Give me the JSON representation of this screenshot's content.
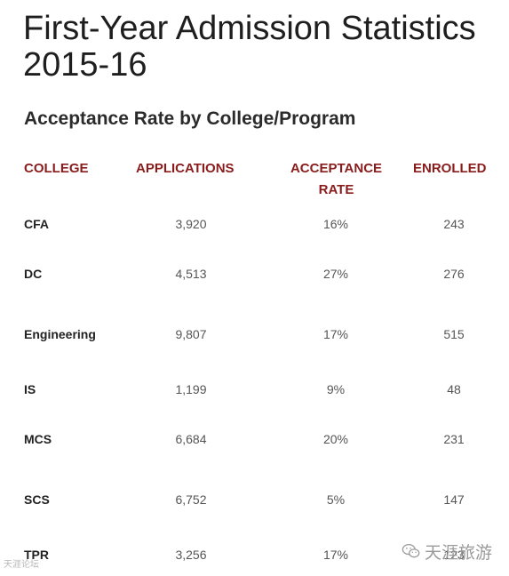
{
  "title": "First-Year Admission Statistics 2015-16",
  "subtitle": "Acceptance Rate by College/Program",
  "table": {
    "headers": {
      "college": "COLLEGE",
      "applications": "APPLICATIONS",
      "acceptance_rate": "ACCEPTANCE RATE",
      "enrolled": "ENROLLED"
    },
    "rows": [
      {
        "college": "CFA",
        "applications": "3,920",
        "acceptance_rate": "16%",
        "enrolled": "243"
      },
      {
        "college": "DC",
        "applications": "4,513",
        "acceptance_rate": "27%",
        "enrolled": "276"
      },
      {
        "college": "Engineering",
        "applications": "9,807",
        "acceptance_rate": "17%",
        "enrolled": "515"
      },
      {
        "college": "IS",
        "applications": "1,199",
        "acceptance_rate": "9%",
        "enrolled": "48"
      },
      {
        "college": "MCS",
        "applications": "6,684",
        "acceptance_rate": "20%",
        "enrolled": "231"
      },
      {
        "college": "SCS",
        "applications": "6,752",
        "acceptance_rate": "5%",
        "enrolled": "147"
      },
      {
        "college": "TPR",
        "applications": "3,256",
        "acceptance_rate": "17%",
        "enrolled": "123"
      }
    ]
  },
  "watermarks": {
    "left": "天涯论坛",
    "right": "天涯旅游",
    "icon": "wechat-icon"
  },
  "colors": {
    "header": "#8a1c1c",
    "text": "#222222",
    "value": "#555555"
  }
}
